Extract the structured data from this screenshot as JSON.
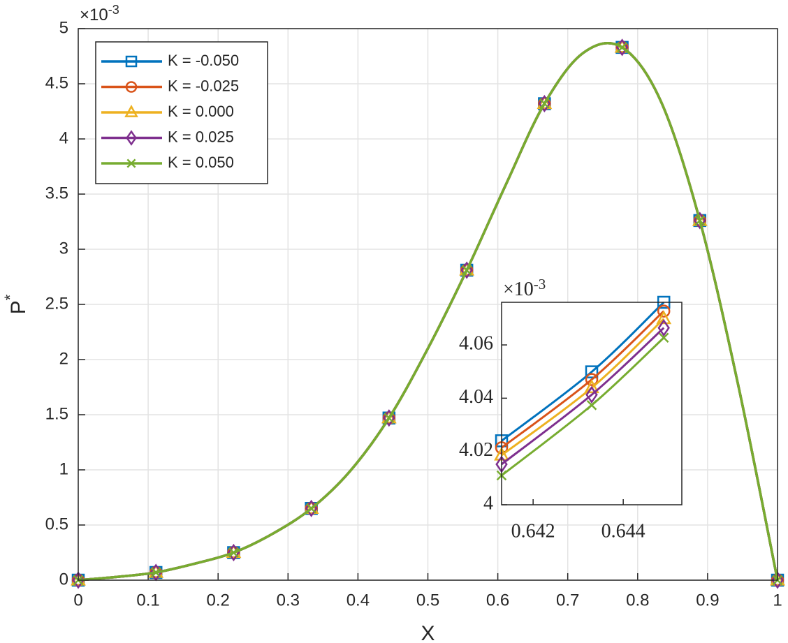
{
  "chart_data": [
    {
      "type": "line",
      "xlabel": "X",
      "ylabel": "P",
      "ylabel_sup": "*",
      "exponent": {
        "base": "×10",
        "power": "-3"
      },
      "x": [
        0,
        0.0556,
        0.1111,
        0.1667,
        0.2222,
        0.2778,
        0.3333,
        0.3889,
        0.4444,
        0.5,
        0.5556,
        0.6111,
        0.6667,
        0.7222,
        0.7778,
        0.8333,
        0.8889,
        0.9444,
        1
      ],
      "marker_every": 2,
      "xlim": [
        0,
        1
      ],
      "ylim": [
        0,
        5
      ],
      "xticks": [
        0,
        0.1,
        0.2,
        0.3,
        0.4,
        0.5,
        0.6,
        0.7,
        0.8,
        0.9,
        1
      ],
      "yticks": [
        0,
        0.5,
        1,
        1.5,
        2,
        2.5,
        3,
        3.5,
        4,
        4.5,
        5
      ],
      "grid": true,
      "legend": "upper left",
      "series": [
        {
          "name": "K = -0.050",
          "color": "#0072BD",
          "marker": "square",
          "values": [
            0,
            0.03,
            0.07,
            0.15,
            0.25,
            0.42,
            0.65,
            0.99,
            1.47,
            2.1,
            2.81,
            3.58,
            4.32,
            4.78,
            4.83,
            4.34,
            3.26,
            1.75,
            0
          ]
        },
        {
          "name": "K = -0.025",
          "color": "#D95319",
          "marker": "circle",
          "values": [
            0,
            0.03,
            0.07,
            0.15,
            0.25,
            0.42,
            0.65,
            0.99,
            1.47,
            2.1,
            2.81,
            3.58,
            4.32,
            4.78,
            4.83,
            4.34,
            3.26,
            1.75,
            0
          ]
        },
        {
          "name": "K = 0.000",
          "color": "#EDB120",
          "marker": "triangle",
          "values": [
            0,
            0.03,
            0.07,
            0.15,
            0.25,
            0.42,
            0.65,
            0.99,
            1.47,
            2.1,
            2.81,
            3.58,
            4.32,
            4.78,
            4.83,
            4.34,
            3.26,
            1.75,
            0
          ]
        },
        {
          "name": "K = 0.025",
          "color": "#7E2F8E",
          "marker": "diamond",
          "values": [
            0,
            0.03,
            0.07,
            0.15,
            0.25,
            0.42,
            0.65,
            0.99,
            1.47,
            2.1,
            2.81,
            3.58,
            4.32,
            4.78,
            4.83,
            4.34,
            3.26,
            1.75,
            0
          ]
        },
        {
          "name": "K = 0.050",
          "color": "#77AC30",
          "marker": "x",
          "values": [
            0,
            0.03,
            0.07,
            0.15,
            0.25,
            0.42,
            0.65,
            0.99,
            1.47,
            2.1,
            2.81,
            3.58,
            4.32,
            4.78,
            4.83,
            4.34,
            3.26,
            1.75,
            0
          ]
        }
      ]
    },
    {
      "type": "line",
      "exponent": {
        "base": "×10",
        "power": "-3"
      },
      "x": [
        0.6413,
        0.6433,
        0.6449
      ],
      "marker_every": 1,
      "xlim": [
        0.6413,
        0.6453
      ],
      "ylim": [
        4,
        4.076
      ],
      "xticks": [
        0.642,
        0.644
      ],
      "yticks": [
        4,
        4.02,
        4.04,
        4.06
      ],
      "grid": false,
      "series": [
        {
          "color": "#0072BD",
          "marker": "square",
          "values": [
            4.024,
            4.0499,
            4.076
          ]
        },
        {
          "color": "#D95319",
          "marker": "circle",
          "values": [
            4.0214,
            4.047,
            4.0727
          ]
        },
        {
          "color": "#EDB120",
          "marker": "triangle",
          "values": [
            4.0186,
            4.0439,
            4.0698
          ]
        },
        {
          "color": "#7E2F8E",
          "marker": "diamond",
          "values": [
            4.0152,
            4.0413,
            4.0664
          ]
        },
        {
          "color": "#77AC30",
          "marker": "x",
          "values": [
            4.011,
            4.0374,
            4.0627
          ]
        }
      ]
    }
  ]
}
